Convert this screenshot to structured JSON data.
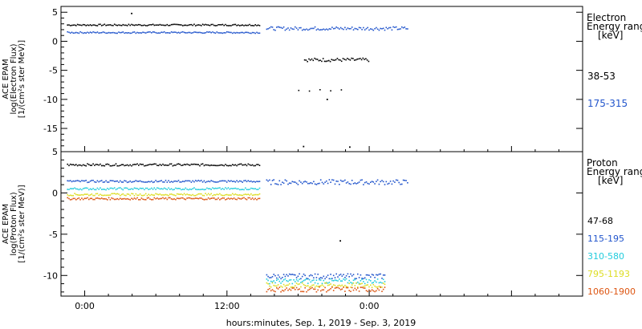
{
  "chart_data": [
    {
      "type": "scatter",
      "panel": "electron",
      "ylabel": [
        "ACE EPAM",
        "log(Electron Flux)",
        "[1/(cm²s ster MeV)]"
      ],
      "ylim": [
        -19,
        6
      ],
      "yticks": [
        5,
        0,
        -5,
        -10,
        -15
      ],
      "legend": {
        "title": [
          "Electron",
          "Energy ranges",
          "[keV]"
        ],
        "placement": "right"
      },
      "series": [
        {
          "name": "38-53",
          "color": "#000000",
          "segments": [
            {
              "x": [
                -1.5,
                14.8
              ],
              "y": 2.8
            },
            {
              "x": [
                18.5,
                24.0
              ],
              "y": -3.2
            },
            {
              "x": [
                18.0,
                25.0
              ],
              "y": -8.5,
              "sparse": true
            }
          ],
          "outliers": [
            [
              3.9,
              4.8
            ],
            [
              18.4,
              -18.1
            ],
            [
              22.3,
              -18.2
            ],
            [
              20.4,
              -10.0
            ]
          ]
        },
        {
          "name": "175-315",
          "color": "#2255cc",
          "segments": [
            {
              "x": [
                -1.5,
                14.8
              ],
              "y": 1.5
            },
            {
              "x": [
                15.3,
                27.3
              ],
              "y": 2.2
            }
          ],
          "outliers": []
        }
      ]
    },
    {
      "type": "scatter",
      "panel": "proton",
      "ylabel": [
        "ACE EPAM",
        "log(Proton Flux)",
        "[1/(cm²s ster MeV)]"
      ],
      "ylim": [
        -12.5,
        5
      ],
      "yticks": [
        5,
        0,
        -5,
        -10
      ],
      "legend": {
        "title": [
          "Proton",
          "Energy ranges",
          "[keV]"
        ],
        "placement": "right"
      },
      "series": [
        {
          "name": "47-68",
          "color": "#000000",
          "segments": [
            {
              "x": [
                -1.5,
                14.8
              ],
              "y": 3.4
            }
          ],
          "outliers": [
            [
              21.5,
              -5.8
            ]
          ]
        },
        {
          "name": "115-195",
          "color": "#2255cc",
          "segments": [
            {
              "x": [
                -1.5,
                14.8
              ],
              "y": 1.4
            },
            {
              "x": [
                15.3,
                27.3
              ],
              "y": 1.3
            },
            {
              "x": [
                15.3,
                25.3
              ],
              "y": -10.1
            }
          ],
          "outliers": []
        },
        {
          "name": "310-580",
          "color": "#22ccdd",
          "segments": [
            {
              "x": [
                -1.5,
                14.8
              ],
              "y": 0.5
            },
            {
              "x": [
                15.3,
                25.3
              ],
              "y": -10.7
            }
          ],
          "outliers": []
        },
        {
          "name": "795-1193",
          "color": "#dddd22",
          "segments": [
            {
              "x": [
                -1.5,
                14.8
              ],
              "y": -0.2
            },
            {
              "x": [
                15.3,
                25.3
              ],
              "y": -11.2
            }
          ],
          "outliers": []
        },
        {
          "name": "1060-1900",
          "color": "#dd5511",
          "segments": [
            {
              "x": [
                -1.5,
                14.8
              ],
              "y": -0.7
            },
            {
              "x": [
                15.3,
                25.3
              ],
              "y": -11.7
            }
          ],
          "outliers": []
        }
      ]
    }
  ],
  "x_axis": {
    "label": "hours:minutes, Sep.  1, 2019 - Sep.  3, 2019",
    "range_hours": [
      -2,
      42
    ],
    "major_ticks": [
      0,
      12,
      24,
      36
    ],
    "tick_labels": [
      "0:00",
      "12:00",
      "0:00",
      ""
    ]
  }
}
